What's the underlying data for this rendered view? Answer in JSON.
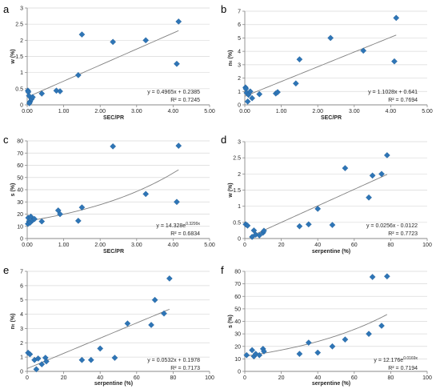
{
  "colors": {
    "marker": "#2E75B6",
    "axis": "#898989",
    "grid": "#d9d9d9",
    "trend": "#808080",
    "text": "#262626"
  },
  "chart_data": [
    {
      "panel_label": "a",
      "type": "scatter",
      "xlabel": "SEC/PR",
      "ylabel": "w (%)",
      "xlim": [
        0,
        5
      ],
      "ylim": [
        0,
        3
      ],
      "xticks": [
        "0.00",
        "1.00",
        "2.00",
        "3.00",
        "4.00",
        "5.00"
      ],
      "yticks": [
        "0",
        "0.5",
        "1",
        "1.5",
        "2",
        "2.5",
        "3"
      ],
      "points": [
        [
          0.02,
          0.44
        ],
        [
          0.03,
          0.4
        ],
        [
          0.05,
          0.28
        ],
        [
          0.08,
          0.1
        ],
        [
          0.12,
          0.18
        ],
        [
          0.15,
          0.24
        ],
        [
          0.06,
          0.05
        ],
        [
          0.4,
          0.35
        ],
        [
          0.8,
          0.44
        ],
        [
          0.9,
          0.42
        ],
        [
          1.4,
          0.92
        ],
        [
          1.5,
          2.18
        ],
        [
          2.35,
          1.95
        ],
        [
          3.25,
          2.0
        ],
        [
          4.1,
          1.27
        ],
        [
          4.15,
          2.58
        ]
      ],
      "trend": {
        "kind": "linear",
        "a": 0.4965,
        "b": 0.2385,
        "x_range": [
          0,
          4.15
        ]
      },
      "equation": "y = 0.4965x + 0.2385",
      "r2": "R² = 0.7245"
    },
    {
      "panel_label": "b",
      "type": "scatter",
      "xlabel": "SEC/PR",
      "ylabel": "nₜ (%)",
      "xlim": [
        0,
        5
      ],
      "ylim": [
        0,
        7
      ],
      "xticks": [
        "0.00",
        "1.00",
        "2.00",
        "3.00",
        "4.00",
        "5.00"
      ],
      "yticks": [
        "0",
        "1",
        "2",
        "3",
        "4",
        "5",
        "6",
        "7"
      ],
      "points": [
        [
          0.02,
          1.3
        ],
        [
          0.03,
          1.2
        ],
        [
          0.05,
          0.9
        ],
        [
          0.08,
          0.25
        ],
        [
          0.1,
          0.75
        ],
        [
          0.15,
          1.0
        ],
        [
          0.2,
          0.5
        ],
        [
          0.4,
          0.8
        ],
        [
          0.85,
          0.85
        ],
        [
          0.9,
          0.95
        ],
        [
          1.4,
          1.6
        ],
        [
          1.5,
          3.4
        ],
        [
          2.35,
          5.0
        ],
        [
          3.25,
          4.05
        ],
        [
          4.1,
          3.25
        ],
        [
          4.15,
          6.5
        ]
      ],
      "trend": {
        "kind": "linear",
        "a": 1.1028,
        "b": 0.641,
        "x_range": [
          0,
          4.15
        ]
      },
      "equation": "y = 1.1028x + 0.641",
      "r2": "R² = 0.7694"
    },
    {
      "panel_label": "c",
      "type": "scatter",
      "xlabel": "SEC/PR",
      "ylabel": "s (%)",
      "xlim": [
        0,
        5
      ],
      "ylim": [
        0,
        80
      ],
      "xticks": [
        "0.00",
        "1.00",
        "2.00",
        "3.00",
        "4.00",
        "5.00"
      ],
      "yticks": [
        "0",
        "10",
        "20",
        "30",
        "40",
        "50",
        "60",
        "70",
        "80"
      ],
      "points": [
        [
          0.02,
          12
        ],
        [
          0.03,
          17
        ],
        [
          0.05,
          14
        ],
        [
          0.08,
          13
        ],
        [
          0.1,
          18
        ],
        [
          0.15,
          15
        ],
        [
          0.2,
          16
        ],
        [
          0.4,
          14
        ],
        [
          0.85,
          23
        ],
        [
          0.9,
          20
        ],
        [
          1.4,
          14.5
        ],
        [
          1.5,
          25.5
        ],
        [
          2.35,
          75.5
        ],
        [
          3.25,
          36.5
        ],
        [
          4.1,
          30
        ],
        [
          4.15,
          76
        ]
      ],
      "trend": {
        "kind": "exponential",
        "a": 14.328,
        "b": 0.3299,
        "x_range": [
          0,
          4.15
        ]
      },
      "equation": "y = 14.328e",
      "equation_exp": "0.3299x",
      "r2": "R² = 0.6834"
    },
    {
      "panel_label": "d",
      "type": "scatter",
      "xlabel": "serpentine (%)",
      "ylabel": "w (%)",
      "xlim": [
        0,
        100
      ],
      "ylim": [
        0,
        3
      ],
      "xticks": [
        "0",
        "20",
        "40",
        "60",
        "80",
        "100"
      ],
      "yticks": [
        "0",
        "0.5",
        "1",
        "1.5",
        "2",
        "2.5",
        "3"
      ],
      "points": [
        [
          0.5,
          0.44
        ],
        [
          1.5,
          0.4
        ],
        [
          4,
          0.05
        ],
        [
          5,
          0.25
        ],
        [
          6,
          0.12
        ],
        [
          8,
          0.1
        ],
        [
          10,
          0.18
        ],
        [
          10.5,
          0.24
        ],
        [
          30,
          0.38
        ],
        [
          35,
          0.44
        ],
        [
          40,
          0.92
        ],
        [
          48,
          0.42
        ],
        [
          55,
          2.18
        ],
        [
          68,
          1.27
        ],
        [
          70,
          1.95
        ],
        [
          75,
          2.0
        ],
        [
          78,
          2.58
        ]
      ],
      "trend": {
        "kind": "linear",
        "a": 0.0256,
        "b": -0.0122,
        "x_range": [
          3,
          78
        ]
      },
      "equation": "y = 0.0256x - 0.0122",
      "r2": "R² = 0.7723"
    },
    {
      "panel_label": "e",
      "type": "scatter",
      "xlabel": "serpentine (%)",
      "ylabel": "nₜ (%)",
      "xlim": [
        0,
        100
      ],
      "ylim": [
        0,
        7
      ],
      "xticks": [
        "0",
        "20",
        "40",
        "60",
        "80",
        "100"
      ],
      "yticks": [
        "0",
        "1",
        "2",
        "3",
        "4",
        "5",
        "6",
        "7"
      ],
      "points": [
        [
          0.5,
          1.3
        ],
        [
          1.5,
          1.2
        ],
        [
          4,
          0.8
        ],
        [
          5,
          0.15
        ],
        [
          6,
          0.9
        ],
        [
          8,
          0.5
        ],
        [
          10,
          0.95
        ],
        [
          10.5,
          0.7
        ],
        [
          30,
          0.8
        ],
        [
          35,
          0.8
        ],
        [
          40,
          1.6
        ],
        [
          48,
          0.95
        ],
        [
          55,
          3.35
        ],
        [
          68,
          3.25
        ],
        [
          70,
          5.0
        ],
        [
          75,
          4.05
        ],
        [
          78,
          6.5
        ]
      ],
      "trend": {
        "kind": "linear",
        "a": 0.0532,
        "b": 0.1978,
        "x_range": [
          0,
          78
        ]
      },
      "equation": "y = 0.0532x + 0.1978",
      "r2": "R² = 0.7173"
    },
    {
      "panel_label": "f",
      "type": "scatter",
      "xlabel": "serpentine (%)",
      "ylabel": "s (%)",
      "xlim": [
        0,
        100
      ],
      "ylim": [
        0,
        80
      ],
      "xticks": [
        "0",
        "20",
        "40",
        "60",
        "80",
        "100"
      ],
      "yticks": [
        "0",
        "10",
        "20",
        "30",
        "40",
        "50",
        "60",
        "70",
        "80"
      ],
      "points": [
        [
          1,
          13
        ],
        [
          4,
          17
        ],
        [
          5,
          12
        ],
        [
          6,
          14
        ],
        [
          8,
          13
        ],
        [
          10,
          18
        ],
        [
          10.5,
          16
        ],
        [
          30,
          14
        ],
        [
          35,
          23
        ],
        [
          40,
          15
        ],
        [
          48,
          20
        ],
        [
          55,
          25.5
        ],
        [
          68,
          30
        ],
        [
          70,
          75.5
        ],
        [
          75,
          36.5
        ],
        [
          78,
          76
        ]
      ],
      "trend": {
        "kind": "exponential",
        "a": 12.176,
        "b": 0.0169,
        "x_range": [
          0,
          78
        ]
      },
      "equation": "y = 12.176e",
      "equation_exp": "0.0169x",
      "r2": "R² = 0.7194"
    }
  ]
}
